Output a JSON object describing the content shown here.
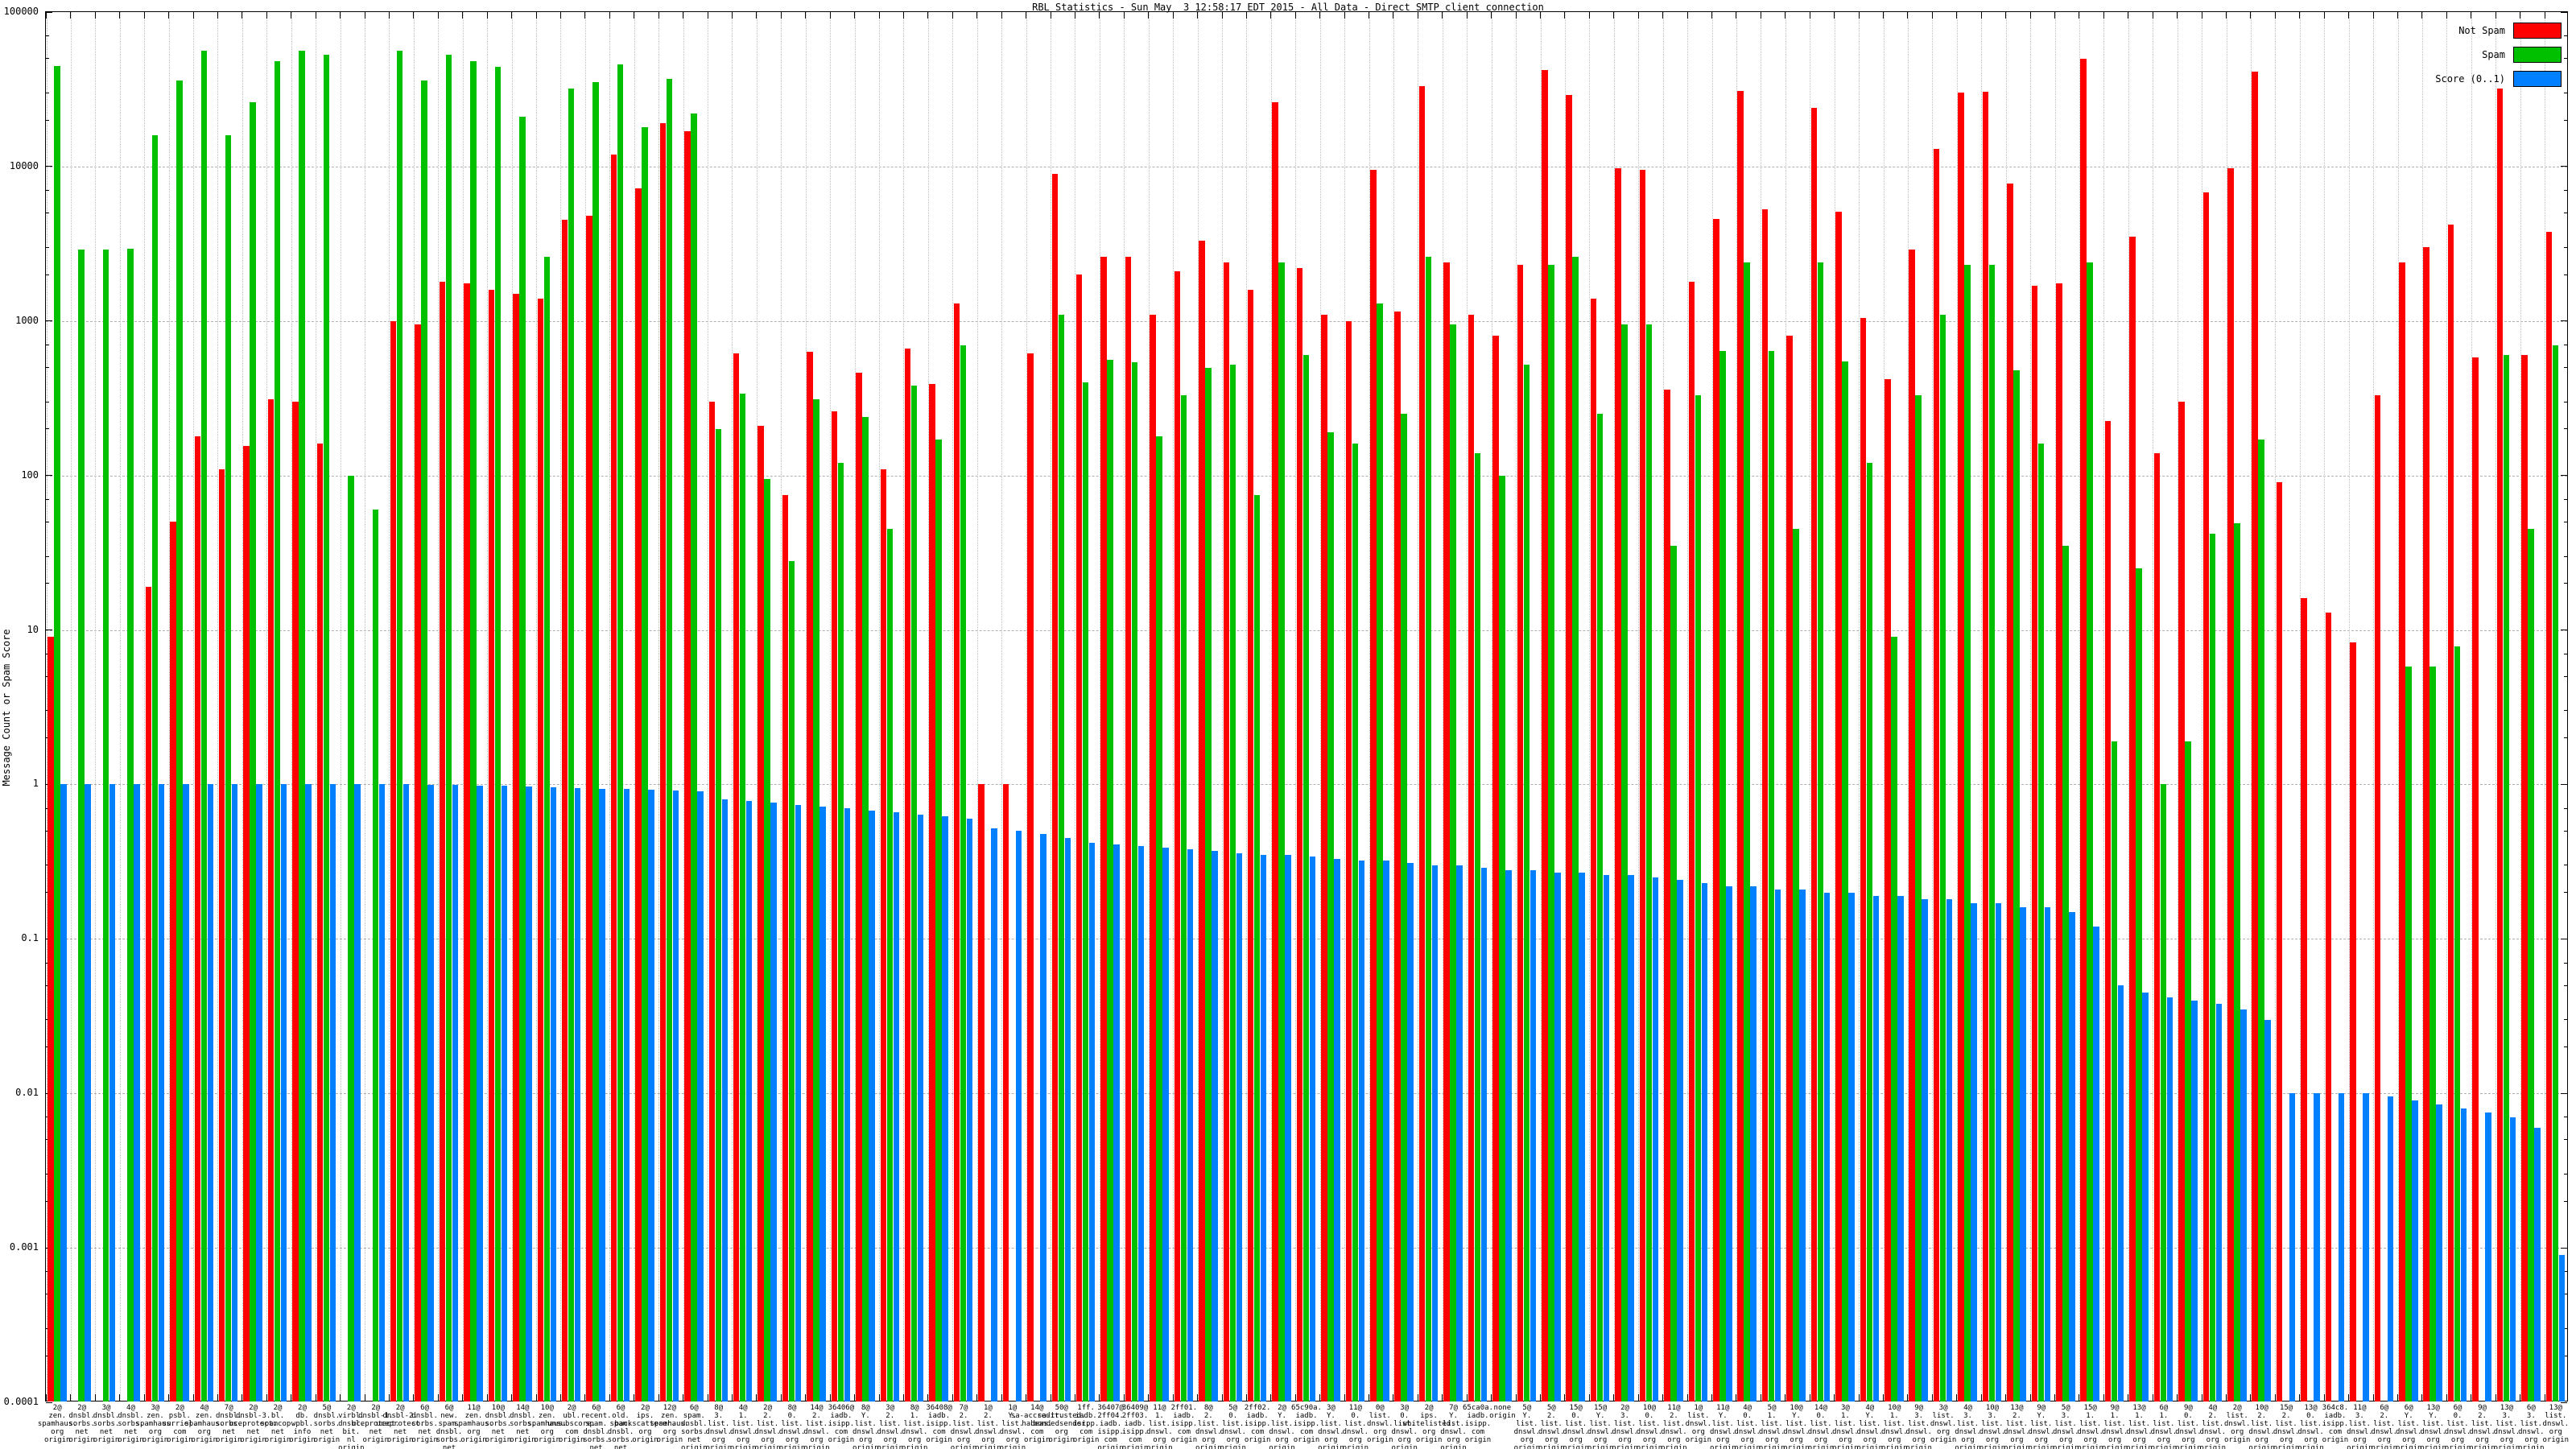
{
  "title": "RBL Statistics - Sun May  3 12:58:17 EDT 2015 - All Data - Direct SMTP client connection",
  "chart_data": {
    "type": "bar",
    "title": "RBL Statistics - Sun May  3 12:58:17 EDT 2015 - All Data - Direct SMTP client connection",
    "xlabel": "",
    "ylabel": "Message Count or Spam Score",
    "y_scale": "log",
    "ylim": [
      0.0001,
      100000
    ],
    "yticks": [
      "100000",
      "10000",
      "1000",
      "100",
      "10",
      "1",
      "0.1",
      "0.01",
      "0.001",
      "0.0001"
    ],
    "grid": true,
    "legend_position": "top-right-inside",
    "x_label_suffix": "origin",
    "legend": [
      {
        "label": "Not Spam",
        "color": "#ff0000"
      },
      {
        "label": "Spam",
        "color": "#00c000"
      },
      {
        "label": "Score (0..1)",
        "color": "#0080ff"
      }
    ],
    "series_names": [
      "not_spam_count",
      "spam_count",
      "score"
    ],
    "groups": [
      [
        "2@zen.spamhaus.org",
        9,
        45000,
        1.0
      ],
      [
        "2@dnsbl.sorbs.net",
        null,
        2900,
        1.0
      ],
      [
        "3@dnsbl.sorbs.net",
        null,
        2900,
        1.0
      ],
      [
        "4@dnsbl.sorbs.net",
        null,
        2950,
        1.0
      ],
      [
        "3@zen.spamhaus.org",
        19,
        16000,
        1.0
      ],
      [
        "2@psbl.surriel.com",
        50,
        36000,
        1.0
      ],
      [
        "4@zen.spamhaus.org",
        180,
        56000,
        1.0
      ],
      [
        "7@dnsbl.sorbs.net",
        110,
        16000,
        1.0
      ],
      [
        "2@dnsbl-3.uceprotect.net",
        155,
        26000,
        1.0
      ],
      [
        "2@bl.spamcop.net",
        310,
        48000,
        1.0
      ],
      [
        "2@db.wpbl.info",
        300,
        56000,
        1.0
      ],
      [
        "5@dnsbl.sorbs.net",
        160,
        53000,
        1.0
      ],
      [
        "2@virbl.dnsbl.bit.nl",
        null,
        100,
        1.0
      ],
      [
        "2@dnsbl-1.uceprotect.net",
        null,
        60,
        1.0
      ],
      [
        "2@dnsbl-2.uceprotect.net",
        1000,
        56000,
        1.0
      ],
      [
        "6@dnsbl.sorbs.net",
        950,
        36000,
        0.99
      ],
      [
        "6@new.spam.dnsbl.sorbs.net",
        1800,
        53000,
        0.99
      ],
      [
        "11@zen.spamhaus.org",
        1750,
        48000,
        0.98
      ],
      [
        "10@dnsbl.sorbs.net",
        1600,
        44000,
        0.98
      ],
      [
        "14@dnsbl.sorbs.net",
        1500,
        21000,
        0.97
      ],
      [
        "10@zen.spamhaus.org",
        1400,
        2600,
        0.96
      ],
      [
        "2@ubl.unsubscore.com",
        4500,
        32000,
        0.95
      ],
      [
        "6@recent.spam.dnsbl.sorbs.net",
        4800,
        35000,
        0.94
      ],
      [
        "6@old.spam.dnsbl.sorbs.net",
        12000,
        46000,
        0.93
      ],
      [
        "2@ips.backscatterer.org",
        7200,
        18000,
        0.92
      ],
      [
        "12@zen.spamhaus.org",
        19000,
        37000,
        0.91
      ],
      [
        "6@spam.dnsbl.sorbs.net",
        17000,
        22000,
        0.9
      ],
      [
        "8@3.list.dnswl.org",
        300,
        200,
        0.8
      ],
      [
        "4@1.list.dnswl.org",
        620,
        340,
        0.78
      ],
      [
        "2@2.list.dnswl.org",
        210,
        95,
        0.76
      ],
      [
        "8@0.list.dnswl.org",
        75,
        28,
        0.74
      ],
      [
        "14@2.list.dnswl.org",
        630,
        310,
        0.72
      ],
      [
        "36406@iadb.isipp.com",
        260,
        120,
        0.7
      ],
      [
        "8@Y.list.dnswl.org",
        460,
        240,
        0.68
      ],
      [
        "3@2.list.dnswl.org",
        110,
        45,
        0.66
      ],
      [
        "8@1.list.dnswl.org",
        660,
        380,
        0.64
      ],
      [
        "36408@iadb.isipp.com",
        390,
        170,
        0.62
      ],
      [
        "7@2.list.dnswl.org",
        1300,
        700,
        0.6
      ],
      [
        "1@2.list.dnswl.org",
        1.0,
        null,
        0.52
      ],
      [
        "1@Y.list.dnswl.org",
        1.0,
        null,
        0.5
      ],
      [
        "14@sa-accredit.habeas.com",
        620,
        null,
        0.48
      ],
      [
        "50@sa-trusted.bondedsender.org",
        9000,
        1100,
        0.45
      ],
      [
        "1ff.iadb.isipp.com",
        2000,
        400,
        0.42
      ],
      [
        "36407@2ff04.iadb.isipp.com",
        2600,
        560,
        0.41
      ],
      [
        "36409@2ff03.iadb.isipp.com",
        2600,
        540,
        0.4
      ],
      [
        "11@1.list.dnswl.org",
        1100,
        180,
        0.39
      ],
      [
        "2ff01.iadb.isipp.com",
        2100,
        330,
        0.38
      ],
      [
        "8@2.list.dnswl.org",
        3300,
        500,
        0.37
      ],
      [
        "5@0.list.dnswl.org",
        2400,
        520,
        0.36
      ],
      [
        "2ff02.iadb.isipp.com",
        1600,
        75,
        0.35
      ],
      [
        "2@Y.list.dnswl.org",
        26000,
        2400,
        0.35
      ],
      [
        "65c90a.iadb.isipp.com",
        2200,
        600,
        0.34
      ],
      [
        "3@Y.list.dnswl.org",
        1100,
        190,
        0.33
      ],
      [
        "11@0.list.dnswl.org",
        1000,
        160,
        0.32
      ],
      [
        "0@list.dnswl.org",
        9500,
        1300,
        0.32
      ],
      [
        "3@0.list.dnswl.org",
        1150,
        250,
        0.31
      ],
      [
        "2@ips.whitelisted.org",
        33000,
        2600,
        0.3
      ],
      [
        "7@Y.list.dnswl.org",
        2400,
        950,
        0.3
      ],
      [
        "65ca0a.iadb.isipp.com",
        1100,
        140,
        0.29
      ],
      [
        "none",
        800,
        100,
        0.28
      ],
      [
        "5@Y.list.dnswl.org",
        2300,
        520,
        0.28
      ],
      [
        "5@2.list.dnswl.org",
        42000,
        2300,
        0.27
      ],
      [
        "15@0.list.dnswl.org",
        29000,
        2600,
        0.27
      ],
      [
        "15@Y.list.dnswl.org",
        1400,
        250,
        0.26
      ],
      [
        "2@3.list.dnswl.org",
        9700,
        950,
        0.26
      ],
      [
        "10@0.list.dnswl.org",
        9500,
        950,
        0.25
      ],
      [
        "11@2.list.dnswl.org",
        360,
        35,
        0.24
      ],
      [
        "1@list.dnswl.org",
        1800,
        330,
        0.23
      ],
      [
        "11@Y.list.dnswl.org",
        4600,
        640,
        0.22
      ],
      [
        "4@0.list.dnswl.org",
        31000,
        2400,
        0.22
      ],
      [
        "5@1.list.dnswl.org",
        5300,
        640,
        0.21
      ],
      [
        "10@Y.list.dnswl.org",
        800,
        45,
        0.21
      ],
      [
        "14@0.list.dnswl.org",
        24000,
        2400,
        0.2
      ],
      [
        "3@1.list.dnswl.org",
        5100,
        550,
        0.2
      ],
      [
        "4@Y.list.dnswl.org",
        1050,
        120,
        0.19
      ],
      [
        "10@1.list.dnswl.org",
        420,
        9,
        0.19
      ],
      [
        "9@3.list.dnswl.org",
        2900,
        330,
        0.18
      ],
      [
        "3@list.dnswl.org",
        13000,
        1100,
        0.18
      ],
      [
        "4@3.list.dnswl.org",
        30000,
        2300,
        0.17
      ],
      [
        "10@3.list.dnswl.org",
        30500,
        2300,
        0.17
      ],
      [
        "13@2.list.dnswl.org",
        7800,
        480,
        0.16
      ],
      [
        "9@Y.list.dnswl.org",
        1700,
        160,
        0.16
      ],
      [
        "5@3.list.dnswl.org",
        1750,
        35,
        0.15
      ],
      [
        "15@1.list.dnswl.org",
        50000,
        2400,
        0.12
      ],
      [
        "9@1.list.dnswl.org",
        225,
        1.9,
        0.05
      ],
      [
        "13@1.list.dnswl.org",
        3500,
        25,
        0.045
      ],
      [
        "6@1.list.dnswl.org",
        140,
        1.0,
        0.042
      ],
      [
        "9@0.list.dnswl.org",
        300,
        1.9,
        0.04
      ],
      [
        "4@2.list.dnswl.org",
        6800,
        42,
        0.038
      ],
      [
        "2@list.dnswl.org",
        9800,
        49,
        0.035
      ],
      [
        "10@2.list.dnswl.org",
        41000,
        170,
        0.03
      ],
      [
        "15@2.list.dnswl.org",
        90,
        null,
        0.01
      ],
      [
        "13@0.list.dnswl.org",
        16,
        null,
        0.01
      ],
      [
        "364c8.iadb.isipp.com",
        13,
        null,
        0.01
      ],
      [
        "11@3.list.dnswl.org",
        8.3,
        null,
        0.01
      ],
      [
        "6@2.list.dnswl.org",
        330,
        null,
        0.0095
      ],
      [
        "6@Y.list.dnswl.org",
        2400,
        5.8,
        0.009
      ],
      [
        "13@Y.list.dnswl.org",
        3000,
        5.8,
        0.0085
      ],
      [
        "6@0.list.dnswl.org",
        4200,
        7.8,
        0.008
      ],
      [
        "9@2.list.dnswl.org",
        580,
        null,
        0.0075
      ],
      [
        "13@3.list.dnswl.org",
        32000,
        600,
        0.007
      ],
      [
        "6@3.list.dnswl.org",
        600,
        45,
        0.006
      ],
      [
        "13@list.dnswl.org",
        3800,
        700,
        0.0009
      ]
    ]
  }
}
